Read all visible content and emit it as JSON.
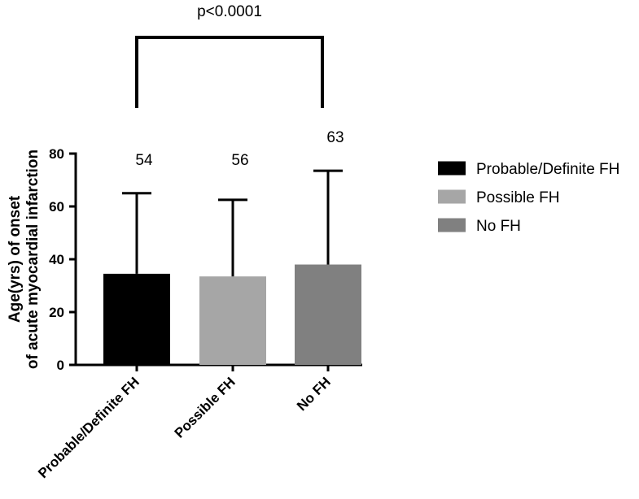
{
  "chart_data": {
    "type": "bar",
    "title": "",
    "xlabel": "",
    "ylabel_lines": [
      "Age(yrs) of onset",
      "of acute myocardial infarction"
    ],
    "ylim": [
      0,
      80
    ],
    "yticks": [
      0,
      20,
      40,
      60,
      80
    ],
    "categories": [
      "Probable/Definite FH",
      "Possible FH",
      "No FH"
    ],
    "values": [
      34.5,
      33.5,
      38
    ],
    "error_upper": [
      65,
      62.5,
      73.5
    ],
    "data_labels": [
      "54",
      "56",
      "63"
    ],
    "colors": [
      "#000000",
      "#a6a6a6",
      "#808080"
    ],
    "legend": {
      "placement": "right",
      "entries": [
        "Probable/Definite FH",
        "Possible FH",
        "No FH"
      ]
    },
    "significance": {
      "text": "p<0.0001",
      "from_category": 0,
      "to_category": 2
    },
    "grid": false
  }
}
